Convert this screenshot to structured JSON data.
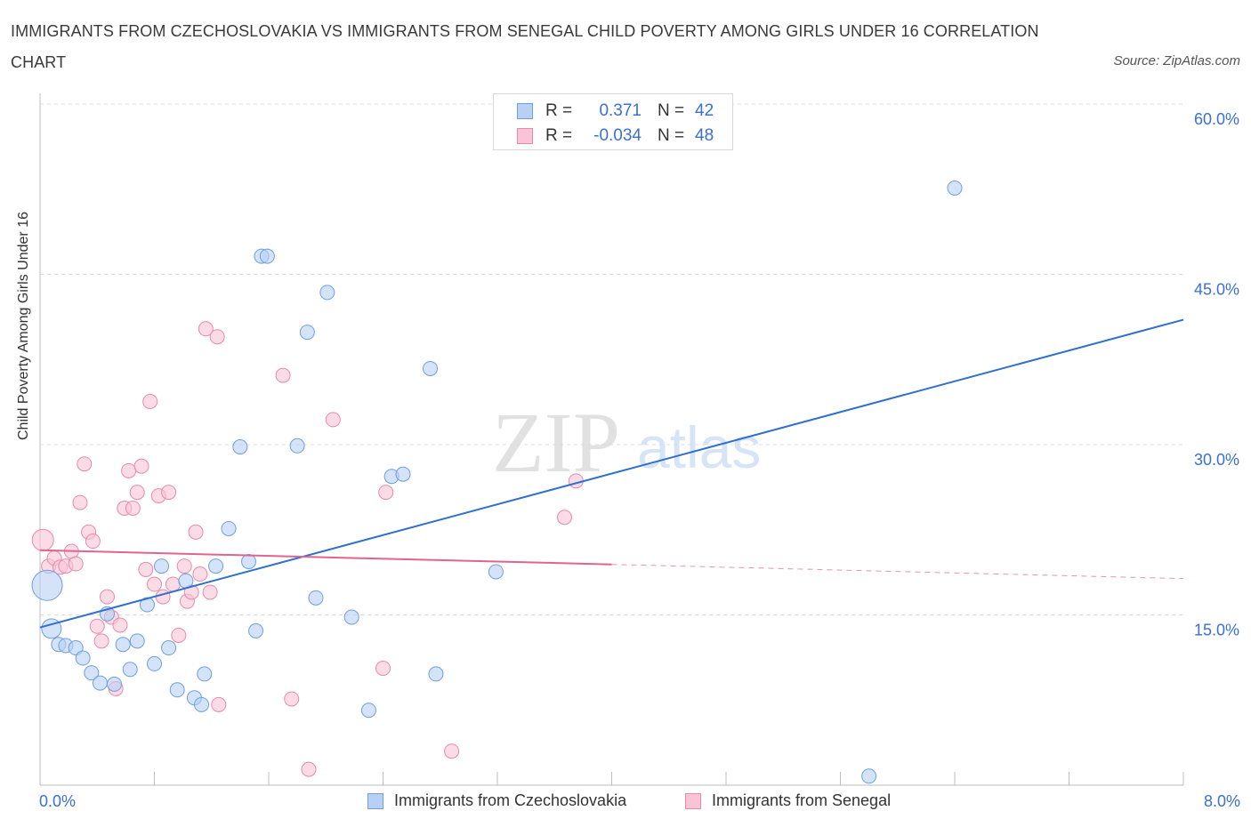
{
  "title": "IMMIGRANTS FROM CZECHOSLOVAKIA VS IMMIGRANTS FROM SENEGAL CHILD POVERTY AMONG GIRLS UNDER 16 CORRELATION CHART",
  "source": "Source: ZipAtlas.com",
  "watermark": {
    "zip": "ZIP",
    "atlas": "atlas"
  },
  "colors": {
    "blue_fill": "#b8d0f4",
    "blue_stroke": "#6f9fe0",
    "blue_line": "#2f6fd0",
    "pink_fill": "#f8c4d6",
    "pink_stroke": "#e88aa8",
    "pink_line": "#e0648f",
    "tick_text": "#3a6fd8",
    "grid": "#dddddd"
  },
  "legend": {
    "rows": [
      {
        "r_label": "R =",
        "r_value": "0.371",
        "n_label": "N =",
        "n_value": "42"
      },
      {
        "r_label": "R =",
        "r_value": "-0.034",
        "n_label": "N =",
        "n_value": "48"
      }
    ],
    "series": [
      "Immigrants from Czechoslovakia",
      "Immigrants from Senegal"
    ]
  },
  "chart_data": {
    "type": "scatter",
    "title": "IMMIGRANTS FROM CZECHOSLOVAKIA VS IMMIGRANTS FROM SENEGAL CHILD POVERTY AMONG GIRLS UNDER 16 CORRELATION CHART",
    "xlabel": "",
    "ylabel": "Child Poverty Among Girls Under 16",
    "xlim": [
      0,
      8
    ],
    "ylim": [
      0,
      60
    ],
    "x_tick_labels": [
      "0.0%",
      "8.0%"
    ],
    "y_ticks": [
      15,
      30,
      45,
      60
    ],
    "y_tick_labels": [
      "15.0%",
      "30.0%",
      "45.0%",
      "60.0%"
    ],
    "grid": true,
    "legend_position": "top-center",
    "series": [
      {
        "name": "Immigrants from Czechoslovakia",
        "r": 0.371,
        "n": 42,
        "trend": {
          "x": [
            0,
            8
          ],
          "y": [
            13.9,
            41.0
          ],
          "dashed_from": null
        },
        "points": [
          [
            0.05,
            17.6
          ],
          [
            0.08,
            13.8
          ],
          [
            0.13,
            12.4
          ],
          [
            0.18,
            12.3
          ],
          [
            0.25,
            12.1
          ],
          [
            0.3,
            11.2
          ],
          [
            0.36,
            9.9
          ],
          [
            0.42,
            9.0
          ],
          [
            0.47,
            15.1
          ],
          [
            0.52,
            8.9
          ],
          [
            0.58,
            12.4
          ],
          [
            0.63,
            10.2
          ],
          [
            0.68,
            12.7
          ],
          [
            0.75,
            15.9
          ],
          [
            0.8,
            10.7
          ],
          [
            0.85,
            19.3
          ],
          [
            0.9,
            12.1
          ],
          [
            0.96,
            8.4
          ],
          [
            1.02,
            18.0
          ],
          [
            1.08,
            7.7
          ],
          [
            1.13,
            7.1
          ],
          [
            1.15,
            9.8
          ],
          [
            1.23,
            19.3
          ],
          [
            1.32,
            22.6
          ],
          [
            1.4,
            29.8
          ],
          [
            1.46,
            19.7
          ],
          [
            1.51,
            13.6
          ],
          [
            1.55,
            46.6
          ],
          [
            1.59,
            46.6
          ],
          [
            1.8,
            29.9
          ],
          [
            1.87,
            39.9
          ],
          [
            1.93,
            16.5
          ],
          [
            2.01,
            43.4
          ],
          [
            2.18,
            14.8
          ],
          [
            2.3,
            6.6
          ],
          [
            2.46,
            27.2
          ],
          [
            2.54,
            27.4
          ],
          [
            2.73,
            36.7
          ],
          [
            2.77,
            9.8
          ],
          [
            3.19,
            18.8
          ],
          [
            6.4,
            52.6
          ],
          [
            5.8,
            0.8
          ]
        ]
      },
      {
        "name": "Immigrants from Senegal",
        "r": -0.034,
        "n": 48,
        "trend": {
          "x": [
            0,
            8
          ],
          "y": [
            20.7,
            18.2
          ],
          "dashed_from": 4.0
        },
        "points": [
          [
            0.02,
            21.6
          ],
          [
            0.06,
            19.3
          ],
          [
            0.1,
            20.0
          ],
          [
            0.14,
            19.2
          ],
          [
            0.18,
            19.3
          ],
          [
            0.22,
            20.6
          ],
          [
            0.25,
            19.5
          ],
          [
            0.28,
            24.9
          ],
          [
            0.31,
            28.3
          ],
          [
            0.34,
            22.3
          ],
          [
            0.37,
            21.5
          ],
          [
            0.4,
            14.0
          ],
          [
            0.43,
            12.7
          ],
          [
            0.47,
            16.6
          ],
          [
            0.5,
            14.8
          ],
          [
            0.53,
            8.5
          ],
          [
            0.56,
            14.1
          ],
          [
            0.59,
            24.4
          ],
          [
            0.62,
            27.7
          ],
          [
            0.65,
            24.4
          ],
          [
            0.68,
            25.8
          ],
          [
            0.71,
            28.1
          ],
          [
            0.74,
            19.0
          ],
          [
            0.77,
            33.8
          ],
          [
            0.8,
            17.7
          ],
          [
            0.83,
            25.5
          ],
          [
            0.86,
            16.6
          ],
          [
            0.9,
            25.8
          ],
          [
            0.93,
            17.7
          ],
          [
            0.97,
            13.2
          ],
          [
            1.01,
            19.3
          ],
          [
            1.03,
            16.2
          ],
          [
            1.06,
            17.0
          ],
          [
            1.09,
            22.3
          ],
          [
            1.12,
            18.6
          ],
          [
            1.16,
            40.2
          ],
          [
            1.19,
            17.0
          ],
          [
            1.24,
            39.5
          ],
          [
            1.25,
            7.1
          ],
          [
            1.7,
            36.1
          ],
          [
            1.76,
            7.6
          ],
          [
            1.88,
            1.4
          ],
          [
            2.05,
            32.2
          ],
          [
            2.4,
            10.3
          ],
          [
            2.42,
            25.8
          ],
          [
            2.88,
            3.0
          ],
          [
            3.67,
            23.6
          ],
          [
            3.75,
            26.8
          ]
        ]
      }
    ]
  }
}
